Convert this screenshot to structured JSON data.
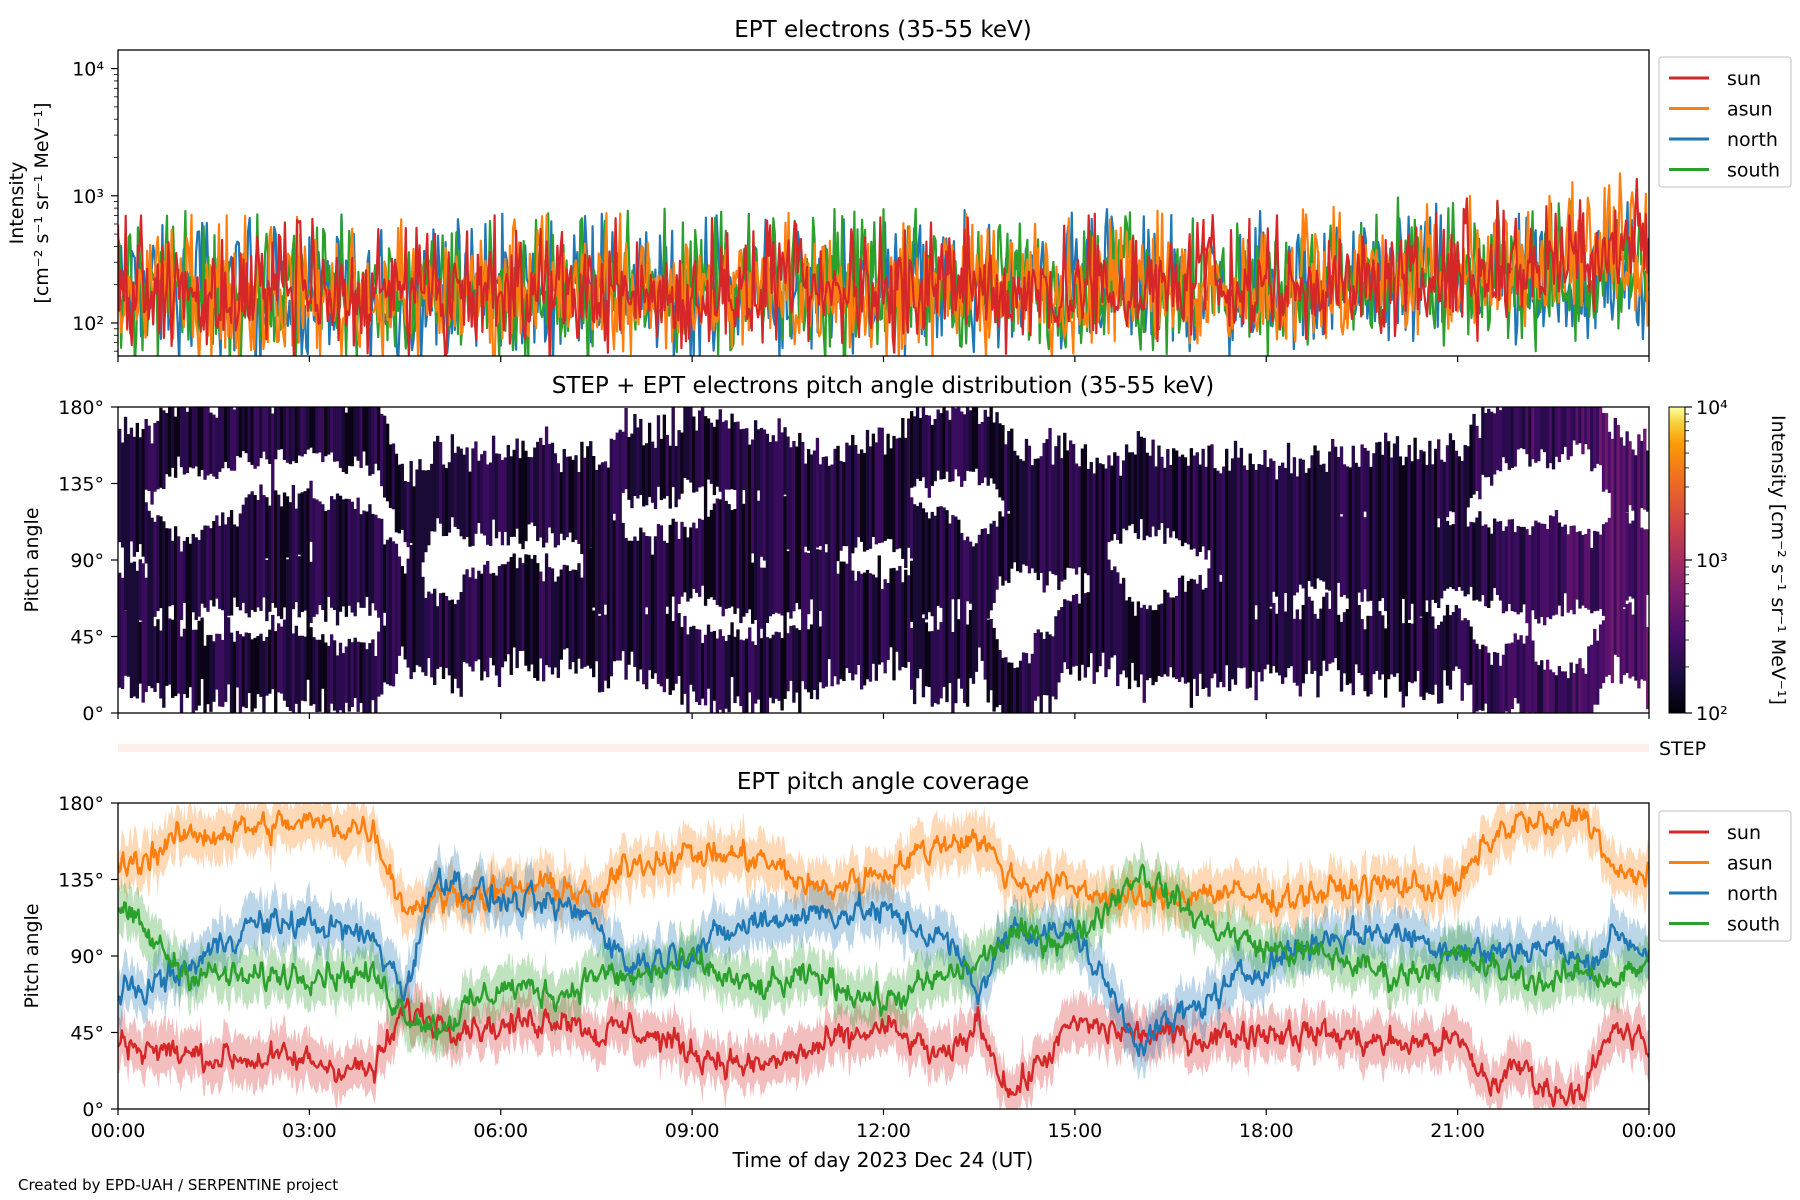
{
  "footer": "Created by EPD-UAH / SERPENTINE project",
  "chart_data": [
    {
      "type": "line",
      "title": "EPT electrons (35-55 keV)",
      "ylabel_line1": "Intensity",
      "ylabel_line2": "[cm⁻² s⁻¹ sr⁻¹ MeV⁻¹]",
      "yscale": "log",
      "ylim": [
        55,
        14000
      ],
      "yticks": [
        {
          "value": 100,
          "label": "10²"
        },
        {
          "value": 1000,
          "label": "10³"
        },
        {
          "value": 10000,
          "label": "10⁴"
        }
      ],
      "xlim": [
        "2023-12-24T00:00",
        "2023-12-25T00:00"
      ],
      "legend_position": "upper-right-outside",
      "series": [
        {
          "name": "north",
          "color": "#1f77b4",
          "baseline": [
            170,
            170,
            165,
            165,
            165,
            170,
            170,
            175,
            180,
            175,
            175,
            180,
            185,
            185,
            185,
            185,
            180,
            180,
            180,
            190,
            200,
            205,
            215,
            225,
            260
          ],
          "spread": 0.42
        },
        {
          "name": "south",
          "color": "#2ca02c",
          "baseline": [
            175,
            175,
            170,
            170,
            170,
            170,
            170,
            175,
            180,
            180,
            185,
            185,
            185,
            190,
            185,
            185,
            185,
            185,
            190,
            195,
            200,
            210,
            220,
            230,
            250
          ],
          "spread": 0.42
        },
        {
          "name": "asun",
          "color": "#ff7f0e",
          "baseline": [
            165,
            165,
            160,
            160,
            160,
            165,
            165,
            170,
            175,
            170,
            170,
            175,
            180,
            180,
            180,
            180,
            180,
            175,
            180,
            190,
            210,
            230,
            255,
            300,
            380
          ],
          "spread": 0.4
        },
        {
          "name": "sun",
          "color": "#d62728",
          "baseline": [
            160,
            160,
            155,
            155,
            155,
            160,
            160,
            165,
            170,
            165,
            165,
            170,
            175,
            175,
            175,
            175,
            175,
            175,
            180,
            190,
            205,
            230,
            260,
            330,
            520
          ],
          "spread": 0.34
        }
      ]
    },
    {
      "type": "heatmap",
      "title": "STEP + EPT electrons pitch angle distribution (35-55 keV)",
      "ylabel": "Pitch angle",
      "ylim": [
        0,
        180
      ],
      "yticks": [
        {
          "value": 0,
          "label": "0°"
        },
        {
          "value": 45,
          "label": "45°"
        },
        {
          "value": 90,
          "label": "90°"
        },
        {
          "value": 135,
          "label": "135°"
        },
        {
          "value": 180,
          "label": "180°"
        }
      ],
      "xlim": [
        "2023-12-24T00:00",
        "2023-12-25T00:00"
      ],
      "colorscale": "inferno",
      "colorbar": {
        "label": "Intensity [cm⁻² s⁻¹ sr⁻¹ MeV⁻¹]",
        "scale": "log",
        "range": [
          100,
          10000
        ],
        "ticks": [
          {
            "value": 100,
            "label": "10²"
          },
          {
            "value": 1000,
            "label": "10³"
          },
          {
            "value": 10000,
            "label": "10⁴"
          }
        ]
      }
    },
    {
      "type": "bar",
      "label": "STEP",
      "color": "#fdf0ea"
    },
    {
      "type": "area",
      "title": "EPT pitch angle coverage",
      "ylabel": "Pitch angle",
      "ylim": [
        0,
        180
      ],
      "yticks": [
        {
          "value": 0,
          "label": "0°"
        },
        {
          "value": 45,
          "label": "45°"
        },
        {
          "value": 90,
          "label": "90°"
        },
        {
          "value": 135,
          "label": "135°"
        },
        {
          "value": 180,
          "label": "180°"
        }
      ],
      "xlabel": "Time of day 2023 Dec 24 (UT)",
      "xlim": [
        "2023-12-24T00:00",
        "2023-12-25T00:00"
      ],
      "xticks": [
        {
          "value": 0,
          "label": "00:00"
        },
        {
          "value": 3,
          "label": "03:00"
        },
        {
          "value": 6,
          "label": "06:00"
        },
        {
          "value": 9,
          "label": "09:00"
        },
        {
          "value": 12,
          "label": "12:00"
        },
        {
          "value": 15,
          "label": "15:00"
        },
        {
          "value": 18,
          "label": "18:00"
        },
        {
          "value": 21,
          "label": "21:00"
        },
        {
          "value": 24,
          "label": "00:00"
        }
      ],
      "legend_position": "upper-right-outside",
      "series": [
        {
          "name": "sun",
          "color": "#d62728",
          "x": [
            0,
            1,
            2,
            3,
            4,
            4.5,
            5,
            6,
            7,
            7.5,
            8,
            9,
            10,
            11,
            12,
            13,
            13.5,
            14,
            15,
            16,
            17,
            18,
            19,
            20,
            21,
            21.5,
            22,
            22.5,
            23,
            23.5,
            24
          ],
          "values": [
            40,
            32,
            30,
            28,
            22,
            58,
            52,
            48,
            56,
            44,
            48,
            34,
            24,
            36,
            48,
            28,
            52,
            8,
            50,
            44,
            42,
            46,
            44,
            38,
            40,
            14,
            26,
            8,
            14,
            48,
            36
          ]
        },
        {
          "name": "asun",
          "color": "#ff7f0e",
          "x": [
            0,
            1,
            2,
            3,
            4,
            4.5,
            5,
            6,
            7,
            7.5,
            8,
            9,
            10,
            11,
            12,
            13,
            13.5,
            14,
            15,
            16,
            17,
            18,
            19,
            20,
            21,
            21.5,
            22,
            22.5,
            23,
            23.5,
            24
          ],
          "values": [
            140,
            160,
            165,
            168,
            165,
            118,
            125,
            128,
            132,
            120,
            145,
            150,
            148,
            128,
            140,
            158,
            160,
            135,
            130,
            122,
            128,
            124,
            128,
            132,
            130,
            158,
            170,
            164,
            176,
            135,
            140
          ]
        },
        {
          "name": "north",
          "color": "#1f77b4",
          "x": [
            0,
            1,
            2,
            3,
            4,
            4.5,
            5,
            6,
            7,
            7.5,
            8,
            9,
            10,
            11,
            12,
            13,
            13.5,
            14,
            15,
            16,
            17,
            18,
            19,
            20,
            21,
            21.5,
            22,
            22.5,
            23,
            23.5,
            24
          ],
          "values": [
            66,
            80,
            108,
            110,
            100,
            70,
            138,
            122,
            118,
            112,
            84,
            94,
            110,
            116,
            116,
            98,
            70,
            106,
            104,
            40,
            62,
            86,
            102,
            104,
            94,
            92,
            94,
            96,
            84,
            104,
            92
          ]
        },
        {
          "name": "south",
          "color": "#2ca02c",
          "x": [
            0,
            1,
            2,
            3,
            4,
            4.5,
            5,
            6,
            7,
            7.5,
            8,
            9,
            10,
            11,
            12,
            13,
            13.5,
            14,
            15,
            16,
            17,
            18,
            19,
            20,
            21,
            21.5,
            22,
            22.5,
            23,
            23.5,
            24
          ],
          "values": [
            118,
            82,
            76,
            82,
            78,
            58,
            48,
            72,
            68,
            80,
            76,
            86,
            70,
            78,
            62,
            78,
            86,
            102,
            100,
            140,
            110,
            94,
            90,
            78,
            90,
            82,
            78,
            74,
            82,
            76,
            86
          ]
        }
      ]
    }
  ]
}
